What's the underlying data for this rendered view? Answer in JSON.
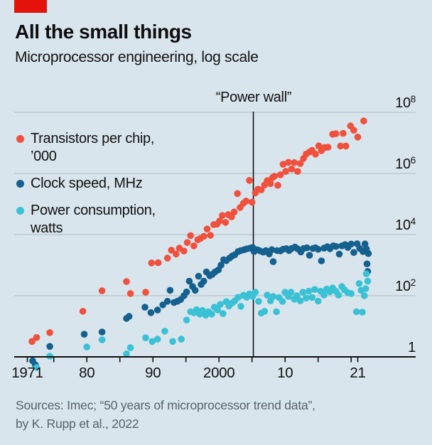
{
  "brand": {
    "tag_color": "#e3120b"
  },
  "header": {
    "title": "All the small things",
    "subtitle": "Microprocessor engineering, log scale"
  },
  "source": {
    "line1": "Sources: Imec; “50 years of microprocessor trend data”,",
    "line2": "by K. Rupp et al., 2022"
  },
  "colors": {
    "background": "#d9e5ec",
    "gridline": "#b6c4cc",
    "axis": "#0f0f0f",
    "transistors": "#f0503c",
    "clock": "#14608e",
    "power": "#3ac1d5"
  },
  "chart_data": {
    "type": "scatter",
    "title": "All the small things",
    "subtitle": "Microprocessor engineering, log scale",
    "grid": "horizontal",
    "legend_position": "upper-left",
    "annotation": {
      "text": "“Power wall”",
      "year": 2005.2
    },
    "x_axis": {
      "start": 1971,
      "end": 2024,
      "tick_years": [
        1971,
        1975,
        1980,
        1985,
        1990,
        1995,
        2000,
        2005,
        2010,
        2015,
        2020,
        2021
      ],
      "labels": [
        {
          "year": 1971,
          "text": "1971"
        },
        {
          "year": 1980,
          "text": "80"
        },
        {
          "year": 1990,
          "text": "90"
        },
        {
          "year": 2000,
          "text": "2000"
        },
        {
          "year": 2010,
          "text": "10"
        },
        {
          "year": 2021,
          "text": "21"
        }
      ]
    },
    "y_axis": {
      "scale": "log",
      "range": [
        1,
        100000000
      ],
      "ticks": [
        {
          "value": 100000000,
          "base": "10",
          "sup": "8"
        },
        {
          "value": 1000000,
          "base": "10",
          "sup": "6"
        },
        {
          "value": 10000,
          "base": "10",
          "sup": "4"
        },
        {
          "value": 100,
          "base": "10",
          "sup": "2"
        },
        {
          "value": 1,
          "base": "1",
          "sup": ""
        }
      ]
    },
    "series": [
      {
        "name": "Transistors per chip, ’000",
        "color": "#f0503c",
        "points": [
          [
            1971.7,
            3.2
          ],
          [
            1972.4,
            4.3
          ],
          [
            1974.4,
            6.2
          ],
          [
            1979.4,
            31
          ],
          [
            1982.3,
            145
          ],
          [
            1986,
            291
          ],
          [
            1986.6,
            118
          ],
          [
            1988.9,
            130
          ],
          [
            1989.8,
            1180
          ],
          [
            1990.8,
            1200
          ],
          [
            1992.2,
            1700
          ],
          [
            1992.8,
            3100
          ],
          [
            1993.5,
            2300
          ],
          [
            1994,
            3600
          ],
          [
            1994.7,
            2900
          ],
          [
            1995.2,
            5500
          ],
          [
            1995.7,
            9300
          ],
          [
            1996.2,
            4300
          ],
          [
            1996.8,
            6800
          ],
          [
            1997.2,
            7500
          ],
          [
            1997.7,
            8800
          ],
          [
            1998.2,
            15200
          ],
          [
            1998.7,
            9500
          ],
          [
            1999.2,
            21300
          ],
          [
            1999.7,
            22000
          ],
          [
            2000.1,
            28000
          ],
          [
            2000.5,
            42000
          ],
          [
            2001,
            25000
          ],
          [
            2001.4,
            45000
          ],
          [
            2001.9,
            38000
          ],
          [
            2002.3,
            55000
          ],
          [
            2002.8,
            220000
          ],
          [
            2003.2,
            77000
          ],
          [
            2003.7,
            106000
          ],
          [
            2004.1,
            125000
          ],
          [
            2004.6,
            592000
          ],
          [
            2005,
            115000
          ],
          [
            2005.5,
            230000
          ],
          [
            2005.9,
            305000
          ],
          [
            2006.4,
            291000
          ],
          [
            2006.9,
            420000
          ],
          [
            2007.3,
            582000
          ],
          [
            2007.8,
            463000
          ],
          [
            2008.1,
            731000
          ],
          [
            2008.4,
            810000
          ],
          [
            2008.9,
            410000
          ],
          [
            2009.3,
            904000
          ],
          [
            2009.7,
            2000000
          ],
          [
            2010.1,
            1170000
          ],
          [
            2010.5,
            2300000
          ],
          [
            2011,
            1400000
          ],
          [
            2011.4,
            2270000
          ],
          [
            2011.9,
            1160000
          ],
          [
            2012.3,
            2100000
          ],
          [
            2012.8,
            3100000
          ],
          [
            2013.2,
            4310000
          ],
          [
            2013.7,
            5000000
          ],
          [
            2014.1,
            5700000
          ],
          [
            2014.6,
            4300000
          ],
          [
            2015.1,
            8000000
          ],
          [
            2015.5,
            5560000
          ],
          [
            2016,
            7100000
          ],
          [
            2016.5,
            7200000
          ],
          [
            2017.2,
            19200000
          ],
          [
            2017.7,
            20000000
          ],
          [
            2018.4,
            7900000
          ],
          [
            2018.8,
            20500000
          ],
          [
            2019.2,
            7900000
          ],
          [
            2019.9,
            36000000
          ],
          [
            2020.4,
            26000000
          ],
          [
            2021,
            15500000
          ],
          [
            2021.9,
            52000000
          ]
        ]
      },
      {
        "name": "Clock speed, MHz",
        "color": "#14608e",
        "points": [
          [
            1971.8,
            0.74
          ],
          [
            1972.2,
            0.55
          ],
          [
            1974.4,
            2.2
          ],
          [
            1979.6,
            5.5
          ],
          [
            1982.3,
            6.5
          ],
          [
            1986,
            18
          ],
          [
            1986.4,
            21
          ],
          [
            1988.8,
            42
          ],
          [
            1989.7,
            28
          ],
          [
            1990.7,
            34
          ],
          [
            1991.5,
            50
          ],
          [
            1992.2,
            66
          ],
          [
            1992.6,
            150
          ],
          [
            1993.2,
            60
          ],
          [
            1993.7,
            66
          ],
          [
            1994.2,
            75
          ],
          [
            1994.7,
            100
          ],
          [
            1995.1,
            133
          ],
          [
            1995.5,
            300
          ],
          [
            1996,
            200
          ],
          [
            1996.4,
            150
          ],
          [
            1996.9,
            433
          ],
          [
            1997.3,
            233
          ],
          [
            1997.7,
            300
          ],
          [
            1998.1,
            600
          ],
          [
            1998.6,
            450
          ],
          [
            1999,
            500
          ],
          [
            1999.4,
            600
          ],
          [
            1999.9,
            700
          ],
          [
            2000.3,
            1000
          ],
          [
            2000.7,
            1500
          ],
          [
            2001.1,
            1400
          ],
          [
            2001.6,
            1700
          ],
          [
            2002,
            2000
          ],
          [
            2002.4,
            2200
          ],
          [
            2002.9,
            2800
          ],
          [
            2003.3,
            3000
          ],
          [
            2003.8,
            3200
          ],
          [
            2004.2,
            3400
          ],
          [
            2004.7,
            3600
          ],
          [
            2005.1,
            3800
          ],
          [
            2005.3,
            2800
          ],
          [
            2005.8,
            3200
          ],
          [
            2006.2,
            2930
          ],
          [
            2006.7,
            2660
          ],
          [
            2007.1,
            3000
          ],
          [
            2007.6,
            2330
          ],
          [
            2008,
            3200
          ],
          [
            2008.2,
            1300
          ],
          [
            2008.8,
            3000
          ],
          [
            2009.3,
            2930
          ],
          [
            2009.7,
            3330
          ],
          [
            2010.2,
            3460
          ],
          [
            2010.6,
            3000
          ],
          [
            2011,
            3500
          ],
          [
            2011.5,
            3900
          ],
          [
            2011.9,
            3400
          ],
          [
            2012.4,
            2700
          ],
          [
            2012.8,
            3500
          ],
          [
            2013.3,
            3700
          ],
          [
            2013.7,
            2100
          ],
          [
            2014.2,
            3500
          ],
          [
            2014.6,
            3700
          ],
          [
            2015,
            3300
          ],
          [
            2015.5,
            1380
          ],
          [
            2015.9,
            3600
          ],
          [
            2016.4,
            4000
          ],
          [
            2016.8,
            3450
          ],
          [
            2017.3,
            4300
          ],
          [
            2017.7,
            4100
          ],
          [
            2018.2,
            2300
          ],
          [
            2018.6,
            4300
          ],
          [
            2019.1,
            4700
          ],
          [
            2019.5,
            3800
          ],
          [
            2020,
            4900
          ],
          [
            2020.4,
            2600
          ],
          [
            2020.9,
            5000
          ],
          [
            2021.3,
            3500
          ],
          [
            2021.8,
            2800
          ],
          [
            2022.1,
            4950
          ],
          [
            2022.3,
            3400
          ],
          [
            2022.4,
            1100
          ],
          [
            2022.5,
            620
          ],
          [
            2022.6,
            2400
          ]
        ]
      },
      {
        "name": "Power consumption, watts",
        "color": "#3ac1d5",
        "points": [
          [
            1972.4,
            0.45
          ],
          [
            1974.4,
            1.05
          ],
          [
            1980,
            2.1
          ],
          [
            1982.3,
            3.6
          ],
          [
            1986,
            1.25
          ],
          [
            1986.6,
            2
          ],
          [
            1988.9,
            4.2
          ],
          [
            1989.9,
            3.2
          ],
          [
            1990.7,
            3.8
          ],
          [
            1991.8,
            6.9
          ],
          [
            1993,
            3.2
          ],
          [
            1994.3,
            3.8
          ],
          [
            1995.1,
            16
          ],
          [
            1995.7,
            30
          ],
          [
            1996.2,
            28
          ],
          [
            1996.6,
            35
          ],
          [
            1997.1,
            25
          ],
          [
            1997.5,
            33
          ],
          [
            1998,
            23
          ],
          [
            1998.4,
            30
          ],
          [
            1998.9,
            25
          ],
          [
            1999.3,
            42
          ],
          [
            1999.8,
            34
          ],
          [
            2000.2,
            52
          ],
          [
            2000.6,
            26
          ],
          [
            2001.1,
            64
          ],
          [
            2001.5,
            46
          ],
          [
            2002,
            58
          ],
          [
            2002.4,
            68
          ],
          [
            2002.9,
            89
          ],
          [
            2003.3,
            45
          ],
          [
            2003.7,
            103
          ],
          [
            2004.2,
            89
          ],
          [
            2004.6,
            115
          ],
          [
            2005.1,
            95
          ],
          [
            2005.5,
            130
          ],
          [
            2006,
            65
          ],
          [
            2006.4,
            27
          ],
          [
            2006.9,
            31
          ],
          [
            2007.3,
            105
          ],
          [
            2007.8,
            68
          ],
          [
            2008.2,
            95
          ],
          [
            2008.7,
            30
          ],
          [
            2009.1,
            87
          ],
          [
            2009.6,
            65
          ],
          [
            2010,
            130
          ],
          [
            2010.5,
            95
          ],
          [
            2010.9,
            130
          ],
          [
            2011.4,
            77
          ],
          [
            2011.8,
            100
          ],
          [
            2012.3,
            68
          ],
          [
            2012.7,
            130
          ],
          [
            2013.2,
            84
          ],
          [
            2013.6,
            140
          ],
          [
            2014.1,
            88
          ],
          [
            2014.5,
            160
          ],
          [
            2015,
            67
          ],
          [
            2015.4,
            140
          ],
          [
            2015.9,
            105
          ],
          [
            2016.3,
            165
          ],
          [
            2016.8,
            135
          ],
          [
            2017.2,
            180
          ],
          [
            2017.7,
            140
          ],
          [
            2018.1,
            105
          ],
          [
            2018.6,
            200
          ],
          [
            2019,
            155
          ],
          [
            2019.5,
            125
          ],
          [
            2020,
            118
          ],
          [
            2020.8,
            30
          ],
          [
            2021.2,
            250
          ],
          [
            2021.5,
            150
          ],
          [
            2021.7,
            29
          ],
          [
            2022,
            100
          ],
          [
            2022.2,
            170
          ],
          [
            2022.3,
            520
          ],
          [
            2022.5,
            300
          ]
        ]
      }
    ]
  }
}
